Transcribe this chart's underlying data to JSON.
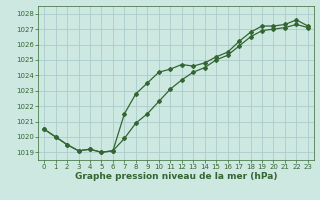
{
  "xlabel": "Graphe pression niveau de la mer (hPa)",
  "bg_color": "#cce8e0",
  "grid_color": "#aacccc",
  "line_color": "#336633",
  "marker": "D",
  "markersize": 2.0,
  "linewidth": 0.9,
  "xlim": [
    -0.5,
    23.5
  ],
  "ylim": [
    1018.5,
    1028.5
  ],
  "yticks": [
    1019,
    1020,
    1021,
    1022,
    1023,
    1024,
    1025,
    1026,
    1027,
    1028
  ],
  "xticks": [
    0,
    1,
    2,
    3,
    4,
    5,
    6,
    7,
    8,
    9,
    10,
    11,
    12,
    13,
    14,
    15,
    16,
    17,
    18,
    19,
    20,
    21,
    22,
    23
  ],
  "line1_x": [
    0,
    1,
    2,
    3,
    4,
    5,
    6,
    7,
    8,
    9,
    10,
    11,
    12,
    13,
    14,
    15,
    16,
    17,
    18,
    19,
    20,
    21,
    22,
    23
  ],
  "line1_y": [
    1020.5,
    1020.0,
    1019.5,
    1019.1,
    1019.2,
    1019.0,
    1019.1,
    1019.9,
    1020.9,
    1021.5,
    1022.3,
    1023.1,
    1023.7,
    1024.2,
    1024.5,
    1025.0,
    1025.3,
    1025.9,
    1026.5,
    1026.9,
    1027.0,
    1027.1,
    1027.3,
    1027.1
  ],
  "line2_x": [
    0,
    1,
    2,
    3,
    4,
    5,
    6,
    7,
    8,
    9,
    10,
    11,
    12,
    13,
    14,
    15,
    16,
    17,
    18,
    19,
    20,
    21,
    22,
    23
  ],
  "line2_y": [
    1020.5,
    1020.0,
    1019.5,
    1019.1,
    1019.2,
    1019.0,
    1019.1,
    1021.5,
    1022.8,
    1023.5,
    1024.2,
    1024.4,
    1024.7,
    1024.6,
    1024.8,
    1025.2,
    1025.5,
    1026.2,
    1026.8,
    1027.2,
    1027.2,
    1027.3,
    1027.6,
    1027.2
  ],
  "font_color": "#336633",
  "tick_labelsize": 5.0,
  "xlabel_fontsize": 6.5,
  "xlabel_fontweight": "bold"
}
